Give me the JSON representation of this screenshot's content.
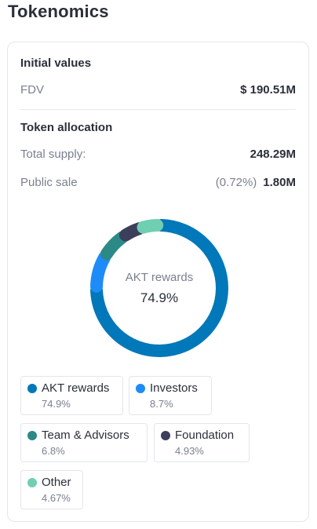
{
  "page": {
    "title": "Tokenomics"
  },
  "initial_values": {
    "title": "Initial values",
    "fdv_label": "FDV",
    "fdv_value": "$ 190.51M"
  },
  "token_allocation": {
    "title": "Token allocation",
    "total_supply_label": "Total supply:",
    "total_supply_value": "248.29M",
    "public_sale_label": "Public sale",
    "public_sale_pct": "(0.72%)",
    "public_sale_value": "1.80M"
  },
  "donut": {
    "center_label": "AKT rewards",
    "center_value": "74.9%"
  },
  "legend": [
    {
      "name": "AKT rewards",
      "pct": "74.9%",
      "color": "#0178b9"
    },
    {
      "name": "Investors",
      "pct": "8.7%",
      "color": "#1d8cf8"
    },
    {
      "name": "Team & Advisors",
      "pct": "6.8%",
      "color": "#2b8a86"
    },
    {
      "name": "Foundation",
      "pct": "4.93%",
      "color": "#3b3f5c"
    },
    {
      "name": "Other",
      "pct": "4.67%",
      "color": "#6fcfb0"
    }
  ],
  "chart_data": {
    "type": "pie",
    "categories": [
      "AKT rewards",
      "Investors",
      "Team & Advisors",
      "Foundation",
      "Other"
    ],
    "values": [
      74.9,
      8.7,
      6.8,
      4.93,
      4.67
    ],
    "colors": [
      "#0178b9",
      "#1d8cf8",
      "#2b8a86",
      "#3b3f5c",
      "#6fcfb0"
    ],
    "style": "donut",
    "center_text": [
      "AKT rewards",
      "74.9%"
    ],
    "legend_placement": "bottom"
  }
}
